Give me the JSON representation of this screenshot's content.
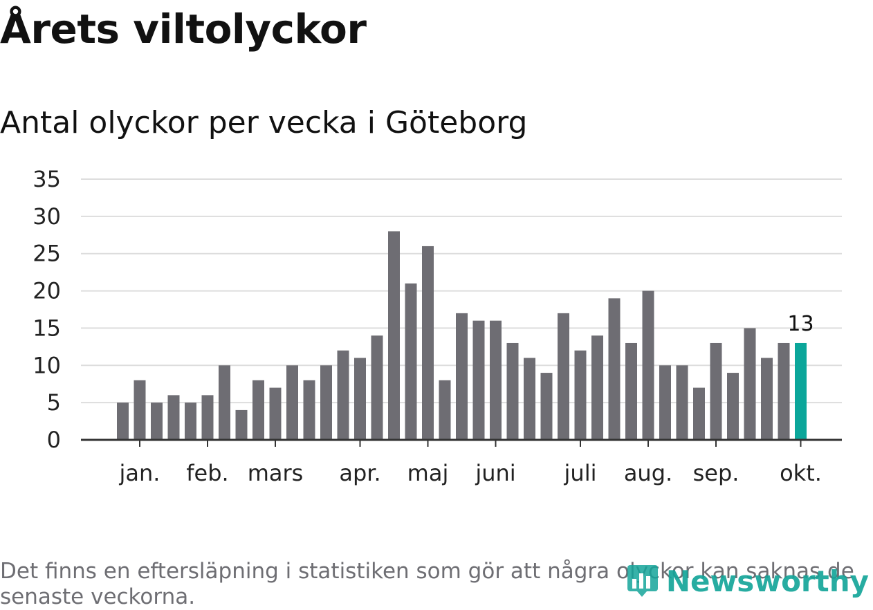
{
  "header": {
    "title": "Årets viltolyckor",
    "subtitle": "Antal olyckor per vecka i Göteborg"
  },
  "chart_data": {
    "type": "bar",
    "title": "Antal olyckor per vecka i Göteborg",
    "xlabel": "",
    "ylabel": "",
    "ylim": [
      0,
      35
    ],
    "yticks": [
      "0",
      "5",
      "10",
      "15",
      "20",
      "25",
      "30",
      "35"
    ],
    "grid": true,
    "values": [
      5,
      8,
      5,
      6,
      5,
      6,
      10,
      4,
      8,
      7,
      10,
      8,
      10,
      12,
      11,
      14,
      28,
      21,
      26,
      8,
      17,
      16,
      16,
      13,
      11,
      9,
      17,
      12,
      14,
      19,
      13,
      20,
      10,
      10,
      7,
      13,
      9,
      15,
      11,
      13,
      13
    ],
    "month_labels": [
      {
        "label": "jan.",
        "week": 1
      },
      {
        "label": "feb.",
        "week": 5
      },
      {
        "label": "mars",
        "week": 9
      },
      {
        "label": "apr.",
        "week": 14
      },
      {
        "label": "maj",
        "week": 18
      },
      {
        "label": "juni",
        "week": 22
      },
      {
        "label": "juli",
        "week": 27
      },
      {
        "label": "aug.",
        "week": 31
      },
      {
        "label": "sep.",
        "week": 35
      },
      {
        "label": "okt.",
        "week": 40
      }
    ],
    "highlight_index": 40,
    "highlight_label": "13",
    "colors": {
      "bar": "#6e6d73",
      "highlight": "#0ba69a",
      "grid": "#dddddd",
      "axis": "#333333"
    }
  },
  "footer": {
    "note": "Det finns en eftersläpning i statistiken som gör att några olyckor kan saknas de senaste veckorna.",
    "brand": "Newsworthy"
  }
}
